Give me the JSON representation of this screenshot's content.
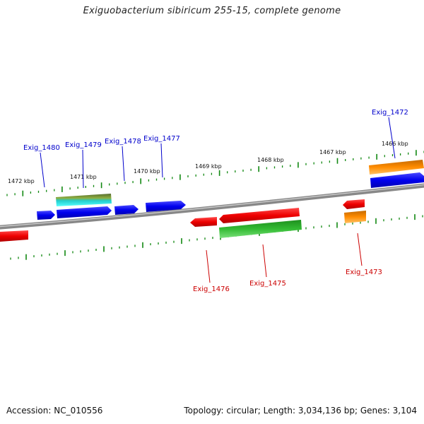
{
  "title": "Exiguobacterium sibiricum 255-15, complete genome",
  "footer": {
    "accession": "Accession: NC_010556",
    "summary": "Topology: circular; Length: 3,034,136 bp; Genes: 3,104"
  },
  "scale_labels": [
    "1472 kbp",
    "1471 kbp",
    "1470 kbp",
    "1469 kbp",
    "1468 kbp",
    "1467 kbp",
    "1466 kbp"
  ],
  "gene_labels": [
    {
      "text": "Exig_1480",
      "strand": "forward"
    },
    {
      "text": "Exig_1479",
      "strand": "forward"
    },
    {
      "text": "Exig_1478",
      "strand": "forward"
    },
    {
      "text": "Exig_1477",
      "strand": "forward"
    },
    {
      "text": "Exig_1472",
      "strand": "forward"
    },
    {
      "text": "Exig_1476",
      "strand": "reverse"
    },
    {
      "text": "Exig_1475",
      "strand": "reverse"
    },
    {
      "text": "Exig_1473",
      "strand": "reverse"
    }
  ],
  "colors": {
    "forward_gene": "#0000ee",
    "reverse_gene": "#ee0000",
    "forward_label": "#0000cc",
    "reverse_label": "#cc0000",
    "backbone": "#808080",
    "ticks": "#118811",
    "cds_green": "#33bb33",
    "cds_olive": "#6b8e23",
    "cds_cyan": "#22dddd",
    "cds_orange": "#ff8c00"
  }
}
